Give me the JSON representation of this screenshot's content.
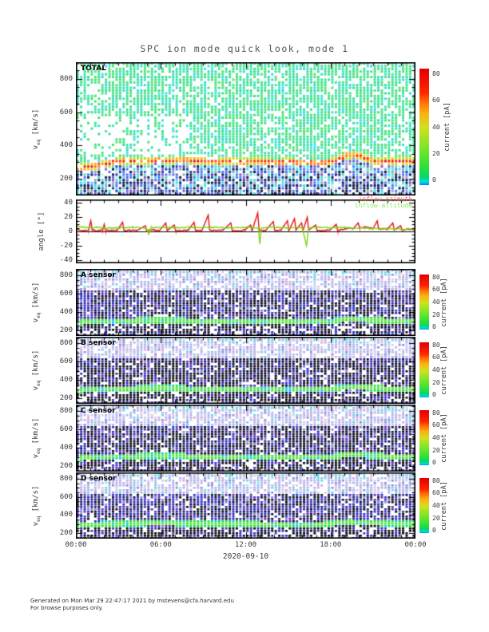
{
  "title": "SPC ion mode quick look, mode 1",
  "footer": {
    "line1": "Generated on Mon Mar 29 22:47:17 2021 by mstevens@cfa.harvard.edu",
    "line2": "For browse purposes only."
  },
  "x_axis": {
    "tick_labels": [
      "00:00",
      "06:00",
      "12:00",
      "18:00",
      "00:00"
    ],
    "label": "2020-09-10",
    "range_hours": [
      0,
      24
    ],
    "minor_tick_every_hours": 1,
    "major_tick_every_hours": 6
  },
  "colorbar": {
    "label": "current [pA]",
    "ticks": [
      0,
      20,
      40,
      60,
      80
    ],
    "range_pA": [
      -4,
      84
    ]
  },
  "chart_data": [
    {
      "id": "total",
      "type": "heatmap",
      "label": "TOTAL",
      "ylabel": {
        "base": "v",
        "sub": "eq",
        "unit": " [km/s]"
      },
      "ylim": [
        100,
        900
      ],
      "yticks": [
        200,
        400,
        600,
        800
      ],
      "yminor": 50,
      "beam_track": [
        [
          0,
          265
        ],
        [
          1,
          272
        ],
        [
          2,
          288
        ],
        [
          3,
          302
        ],
        [
          3.5,
          312
        ],
        [
          4,
          306
        ],
        [
          5,
          302
        ],
        [
          5.5,
          312
        ],
        [
          6,
          316
        ],
        [
          6.5,
          306
        ],
        [
          7,
          312
        ],
        [
          7.5,
          316
        ],
        [
          8,
          310
        ],
        [
          9,
          306
        ],
        [
          10,
          300
        ],
        [
          11,
          306
        ],
        [
          12,
          300
        ],
        [
          13,
          306
        ],
        [
          14,
          298
        ],
        [
          15,
          302
        ],
        [
          16,
          298
        ],
        [
          17,
          295
        ],
        [
          18,
          300
        ],
        [
          18.5,
          315
        ],
        [
          19,
          336
        ],
        [
          19.5,
          346
        ],
        [
          20,
          340
        ],
        [
          20.5,
          320
        ],
        [
          21,
          306
        ],
        [
          21.5,
          300
        ],
        [
          22,
          308
        ],
        [
          23,
          302
        ],
        [
          24,
          305
        ]
      ],
      "beam_halfwidth_kms": 22,
      "beam_peak_pA": 82,
      "background_pA": [
        0,
        8
      ],
      "description": "Total ion current spectrogram; diffuse cyan-green background 0-10 pA above the solar-wind proton beam near 300 km/s (orange-red, up to ~80 pA, rising to ~345 km/s near 19:00-20:00); dark blue low-signal region below ~260 km/s"
    },
    {
      "id": "angle",
      "type": "line",
      "ylabel": "angle [°]",
      "ylim": [
        -45,
        45
      ],
      "yticks": [
        -40,
        -20,
        0,
        20,
        40
      ],
      "yminor": 5,
      "zero_line": true,
      "series": [
        {
          "name": "inflow azimuth",
          "color": "#e81212",
          "label_color": "#ff6a6a",
          "points": [
            [
              0,
              4
            ],
            [
              0.2,
              2
            ],
            [
              0.5,
              1
            ],
            [
              0.9,
              2
            ],
            [
              1.05,
              15
            ],
            [
              1.15,
              2
            ],
            [
              1.5,
              1
            ],
            [
              1.9,
              2
            ],
            [
              2.0,
              10
            ],
            [
              2.1,
              1
            ],
            [
              2.5,
              2
            ],
            [
              2.9,
              1
            ],
            [
              3.3,
              13
            ],
            [
              3.4,
              1
            ],
            [
              3.8,
              2
            ],
            [
              4.3,
              1
            ],
            [
              4.9,
              8
            ],
            [
              5.0,
              1
            ],
            [
              5.5,
              2
            ],
            [
              5.9,
              1
            ],
            [
              6.35,
              12
            ],
            [
              6.45,
              1
            ],
            [
              6.95,
              9
            ],
            [
              7.05,
              1
            ],
            [
              7.5,
              1
            ],
            [
              7.95,
              2
            ],
            [
              8.35,
              13
            ],
            [
              8.45,
              1
            ],
            [
              8.9,
              1
            ],
            [
              9.35,
              23
            ],
            [
              9.45,
              2
            ],
            [
              9.9,
              1
            ],
            [
              10.4,
              2
            ],
            [
              10.95,
              12
            ],
            [
              11.05,
              1
            ],
            [
              11.5,
              1
            ],
            [
              11.95,
              2
            ],
            [
              12.35,
              9
            ],
            [
              12.45,
              1
            ],
            [
              12.85,
              26
            ],
            [
              12.95,
              2
            ],
            [
              13.4,
              1
            ],
            [
              13.95,
              14
            ],
            [
              14.05,
              1
            ],
            [
              14.5,
              2
            ],
            [
              14.95,
              15
            ],
            [
              15.05,
              1
            ],
            [
              15.45,
              18
            ],
            [
              15.55,
              2
            ],
            [
              15.95,
              12
            ],
            [
              16.05,
              1
            ],
            [
              16.35,
              20
            ],
            [
              16.45,
              2
            ],
            [
              16.95,
              9
            ],
            [
              17.05,
              1
            ],
            [
              17.5,
              1
            ],
            [
              17.95,
              2
            ],
            [
              18.4,
              10
            ],
            [
              18.5,
              1
            ],
            [
              19.0,
              3
            ],
            [
              19.3,
              5
            ],
            [
              19.6,
              4
            ],
            [
              19.95,
              12
            ],
            [
              20.05,
              5
            ],
            [
              20.4,
              6
            ],
            [
              20.8,
              5
            ],
            [
              21.0,
              4
            ],
            [
              21.3,
              15
            ],
            [
              21.4,
              3
            ],
            [
              21.8,
              4
            ],
            [
              22.0,
              3
            ],
            [
              22.4,
              12
            ],
            [
              22.5,
              2
            ],
            [
              22.95,
              8
            ],
            [
              23.05,
              2
            ],
            [
              23.5,
              3
            ],
            [
              24,
              2
            ]
          ]
        },
        {
          "name": "inflow altitude",
          "color": "#7cd414",
          "label_color": "#8aee5a",
          "points": [
            [
              0,
              8
            ],
            [
              0.5,
              6
            ],
            [
              1,
              5
            ],
            [
              1.5,
              6
            ],
            [
              2,
              5
            ],
            [
              3,
              5
            ],
            [
              4,
              6
            ],
            [
              5,
              4
            ],
            [
              5.15,
              -4
            ],
            [
              5.3,
              5
            ],
            [
              6,
              6
            ],
            [
              7,
              5
            ],
            [
              8,
              6
            ],
            [
              9,
              5
            ],
            [
              10,
              6
            ],
            [
              11,
              5
            ],
            [
              12,
              6
            ],
            [
              12.9,
              5
            ],
            [
              13.0,
              -18
            ],
            [
              13.1,
              5
            ],
            [
              14,
              6
            ],
            [
              15,
              5
            ],
            [
              16,
              5
            ],
            [
              16.3,
              -20
            ],
            [
              16.45,
              5
            ],
            [
              17,
              6
            ],
            [
              18,
              5
            ],
            [
              19,
              6
            ],
            [
              19.5,
              4
            ],
            [
              20,
              5
            ],
            [
              21,
              4
            ],
            [
              22,
              4
            ],
            [
              23,
              3
            ],
            [
              24,
              3
            ]
          ]
        }
      ]
    },
    {
      "id": "a",
      "type": "heatmap",
      "label": "A sensor",
      "ylabel": {
        "base": "v",
        "sub": "eq",
        "unit": " [km/s]"
      },
      "ylim": [
        140,
        870
      ],
      "yticks": [
        200,
        400,
        600,
        800
      ],
      "yminor": 50,
      "beam_track": [
        [
          0,
          272
        ],
        [
          0.5,
          290
        ],
        [
          2,
          300
        ],
        [
          4,
          305
        ],
        [
          6,
          308
        ],
        [
          8,
          305
        ],
        [
          10,
          300
        ],
        [
          12,
          300
        ],
        [
          14,
          298
        ],
        [
          16,
          296
        ],
        [
          18,
          300
        ],
        [
          18.8,
          315
        ],
        [
          19.3,
          328
        ],
        [
          20,
          322
        ],
        [
          20.8,
          308
        ],
        [
          22,
          305
        ],
        [
          23,
          302
        ],
        [
          24,
          302
        ]
      ],
      "beam_halfwidth_kms": 30,
      "beam_peak_pA": 20,
      "dark_start_h": 1.5,
      "dark_density": 0.45,
      "description": "A sensor current spectrogram; faint purple-blue background, bright green beam band near 300 km/s (~10-25 pA), dark low-signal strokes below ~260 km/s"
    },
    {
      "id": "b",
      "type": "heatmap",
      "label": "B sensor",
      "ylabel": {
        "base": "v",
        "sub": "eq",
        "unit": " [km/s]"
      },
      "ylim": [
        140,
        870
      ],
      "yticks": [
        200,
        400,
        600,
        800
      ],
      "yminor": 50,
      "beam_track": [
        [
          0,
          272
        ],
        [
          0.5,
          290
        ],
        [
          2,
          300
        ],
        [
          4,
          305
        ],
        [
          6,
          308
        ],
        [
          8,
          305
        ],
        [
          10,
          300
        ],
        [
          12,
          300
        ],
        [
          14,
          298
        ],
        [
          16,
          296
        ],
        [
          18,
          300
        ],
        [
          18.8,
          315
        ],
        [
          19.3,
          328
        ],
        [
          20,
          322
        ],
        [
          20.8,
          308
        ],
        [
          22,
          305
        ],
        [
          23,
          302
        ],
        [
          24,
          302
        ]
      ],
      "beam_halfwidth_kms": 30,
      "beam_peak_pA": 20,
      "dark_start_h": 0.4,
      "dark_density": 0.6,
      "description": "B sensor current spectrogram; same structure as A with stronger dark core between ~330-650 km/s"
    },
    {
      "id": "c",
      "type": "heatmap",
      "label": "C sensor",
      "ylabel": {
        "base": "v",
        "sub": "eq",
        "unit": " [km/s]"
      },
      "ylim": [
        140,
        870
      ],
      "yticks": [
        200,
        400,
        600,
        800
      ],
      "yminor": 50,
      "beam_track": [
        [
          0,
          272
        ],
        [
          0.5,
          290
        ],
        [
          2,
          300
        ],
        [
          4,
          305
        ],
        [
          6,
          308
        ],
        [
          8,
          305
        ],
        [
          10,
          300
        ],
        [
          12,
          300
        ],
        [
          14,
          298
        ],
        [
          16,
          296
        ],
        [
          18,
          300
        ],
        [
          18.8,
          315
        ],
        [
          19.3,
          328
        ],
        [
          20,
          322
        ],
        [
          20.8,
          308
        ],
        [
          22,
          305
        ],
        [
          23,
          302
        ],
        [
          24,
          302
        ]
      ],
      "beam_halfwidth_kms": 30,
      "beam_peak_pA": 20,
      "dark_start_h": 0.8,
      "dark_density": 0.5,
      "description": "C sensor current spectrogram; same structure as A/B"
    },
    {
      "id": "d",
      "type": "heatmap",
      "label": "D sensor",
      "ylabel": {
        "base": "v",
        "sub": "eq",
        "unit": " [km/s]"
      },
      "ylim": [
        140,
        870
      ],
      "yticks": [
        200,
        400,
        600,
        800
      ],
      "yminor": 50,
      "beam_track": [
        [
          0,
          272
        ],
        [
          0.5,
          290
        ],
        [
          2,
          300
        ],
        [
          4,
          305
        ],
        [
          6,
          308
        ],
        [
          8,
          305
        ],
        [
          10,
          300
        ],
        [
          12,
          300
        ],
        [
          14,
          298
        ],
        [
          16,
          296
        ],
        [
          18,
          300
        ],
        [
          18.8,
          315
        ],
        [
          19.3,
          328
        ],
        [
          20,
          322
        ],
        [
          20.8,
          308
        ],
        [
          22,
          305
        ],
        [
          23,
          302
        ],
        [
          24,
          302
        ]
      ],
      "beam_halfwidth_kms": 30,
      "beam_peak_pA": 20,
      "dark_start_h": 1.2,
      "dark_density": 0.35,
      "description": "D sensor current spectrogram; same structure, slightly weaker dark core"
    }
  ]
}
